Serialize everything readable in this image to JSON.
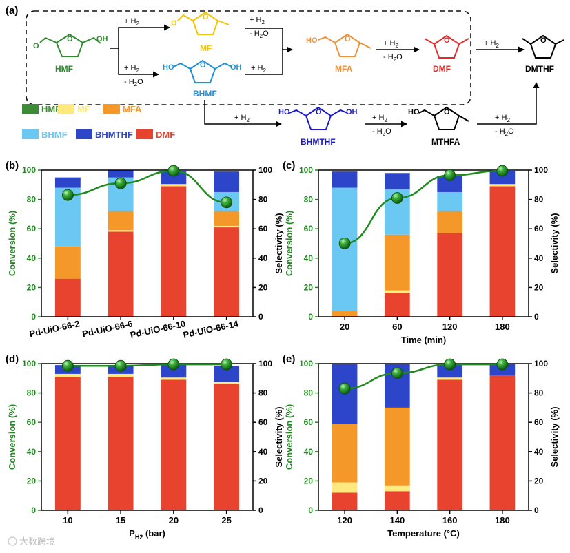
{
  "colors": {
    "HMF": "#3d8b37",
    "MF": "#ffe97f",
    "MFA": "#f4982a",
    "BHMF": "#6ac8f2",
    "BHMTHF": "#2c45c9",
    "DMF": "#e8432e",
    "conversion_line": "#1e8a1e",
    "chem_HMF": "#2e8b2e",
    "chem_MF": "#f2c500",
    "chem_MFA": "#f0913a",
    "chem_BHMF": "#1e90d8",
    "chem_BHMTHF": "#1a1acd",
    "chem_DMF": "#e22b2b"
  },
  "scheme": {
    "panel_label": "(a)",
    "compounds": {
      "HMF": "HMF",
      "MF": "MF",
      "MFA": "MFA",
      "BHMF": "BHMF",
      "DMF": "DMF",
      "DMTHF": "DMTHF",
      "BHMTHF": "BHMTHF",
      "MTHFA": "MTHFA"
    },
    "conditions": {
      "h2": "+ H",
      "h2_sub": "2",
      "water": "- H",
      "water_sub": "2",
      "water_end": "O"
    },
    "groups": {
      "oh": "OH",
      "ho": "HO",
      "o": "O"
    }
  },
  "legend": {
    "items": [
      {
        "key": "HMF",
        "label": "HMF"
      },
      {
        "key": "MF",
        "label": "MF"
      },
      {
        "key": "MFA",
        "label": "MFA"
      },
      {
        "key": "BHMF",
        "label": "BHMF"
      },
      {
        "key": "BHMTHF",
        "label": "BHMTHF"
      },
      {
        "key": "DMF",
        "label": "DMF"
      }
    ]
  },
  "axes_text": {
    "ylabel_left": "Conversion (%)",
    "ylabel_right": "Selectivity (%)"
  },
  "watermark": "大数跨境",
  "chart_data": [
    {
      "panel": "(b)",
      "type": "bar",
      "xlabel": "",
      "categories": [
        "Pd-UiO-66-2",
        "Pd-UiO-66-6",
        "Pd-UiO-66-10",
        "Pd-UiO-66-14"
      ],
      "rotate_ticks": true,
      "stack_order": [
        "DMF",
        "MF",
        "MFA",
        "BHMF",
        "BHMTHF"
      ],
      "series": [
        {
          "name": "DMF",
          "values": [
            26,
            58,
            89,
            61
          ]
        },
        {
          "name": "MF",
          "values": [
            0,
            1,
            1.5,
            1
          ]
        },
        {
          "name": "MFA",
          "values": [
            22,
            13,
            0,
            10
          ]
        },
        {
          "name": "BHMF",
          "values": [
            40,
            23,
            0,
            13
          ]
        },
        {
          "name": "BHMTHF",
          "values": [
            7,
            5,
            9,
            14
          ]
        }
      ],
      "conversion": [
        83,
        91,
        99.5,
        78
      ],
      "ylim": [
        0,
        100
      ],
      "yticks": [
        0,
        20,
        40,
        60,
        80,
        100
      ]
    },
    {
      "panel": "(c)",
      "type": "bar",
      "xlabel": "Time (min)",
      "categories": [
        "20",
        "60",
        "120",
        "180"
      ],
      "rotate_ticks": false,
      "stack_order": [
        "DMF",
        "MF",
        "MFA",
        "BHMF",
        "BHMTHF"
      ],
      "series": [
        {
          "name": "DMF",
          "values": [
            0,
            16,
            57,
            89
          ]
        },
        {
          "name": "MF",
          "values": [
            0,
            2,
            0,
            1.5
          ]
        },
        {
          "name": "MFA",
          "values": [
            4,
            38,
            15,
            0
          ]
        },
        {
          "name": "BHMF",
          "values": [
            84,
            31,
            13,
            0
          ]
        },
        {
          "name": "BHMTHF",
          "values": [
            11,
            11,
            11,
            9
          ]
        }
      ],
      "conversion": [
        50,
        81,
        96.5,
        99.5
      ],
      "ylim": [
        0,
        100
      ],
      "yticks": [
        0,
        20,
        40,
        60,
        80,
        100
      ]
    },
    {
      "panel": "(d)",
      "type": "bar",
      "xlabel": "P",
      "xlabel_sub": "H2",
      "xlabel_end": " (bar)",
      "categories": [
        "10",
        "15",
        "20",
        "25"
      ],
      "rotate_ticks": false,
      "stack_order": [
        "DMF",
        "MF",
        "MFA",
        "BHMF",
        "BHMTHF"
      ],
      "series": [
        {
          "name": "DMF",
          "values": [
            91,
            91,
            89,
            86
          ]
        },
        {
          "name": "MF",
          "values": [
            2,
            2,
            1.5,
            1.5
          ]
        },
        {
          "name": "MFA",
          "values": [
            0,
            0,
            0,
            0
          ]
        },
        {
          "name": "BHMF",
          "values": [
            0,
            0,
            0,
            0
          ]
        },
        {
          "name": "BHMTHF",
          "values": [
            6,
            6,
            9,
            11
          ]
        }
      ],
      "conversion": [
        98.5,
        98.5,
        99.5,
        99.5
      ],
      "ylim": [
        0,
        100
      ],
      "yticks": [
        0,
        20,
        40,
        60,
        80,
        100
      ]
    },
    {
      "panel": "(e)",
      "type": "bar",
      "xlabel": "Temperature (°C)",
      "categories": [
        "120",
        "140",
        "160",
        "180"
      ],
      "rotate_ticks": false,
      "stack_order": [
        "DMF",
        "MF",
        "MFA",
        "BHMF",
        "BHMTHF"
      ],
      "series": [
        {
          "name": "DMF",
          "values": [
            12,
            13,
            89,
            92
          ]
        },
        {
          "name": "MF",
          "values": [
            7,
            4,
            1.5,
            0
          ]
        },
        {
          "name": "MFA",
          "values": [
            40,
            53,
            0,
            0
          ]
        },
        {
          "name": "BHMF",
          "values": [
            0,
            0,
            0,
            0
          ]
        },
        {
          "name": "BHMTHF",
          "values": [
            41,
            30,
            9,
            8
          ]
        }
      ],
      "conversion": [
        83,
        93.5,
        99.5,
        99.5
      ],
      "ylim": [
        0,
        100
      ],
      "yticks": [
        0,
        20,
        40,
        60,
        80,
        100
      ]
    }
  ]
}
